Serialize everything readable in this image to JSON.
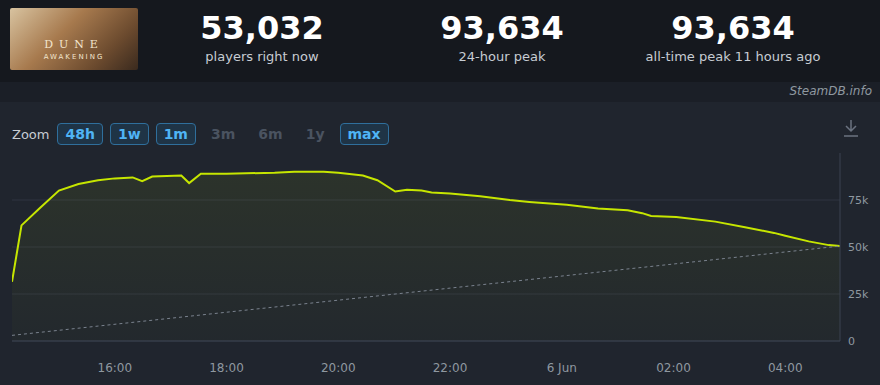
{
  "thumbnail": {
    "title": "DUNE",
    "subtitle": "AWAKENING"
  },
  "stats": [
    {
      "value": 53032,
      "label": "53,032",
      "caption": "players right now"
    },
    {
      "value": 93634,
      "label": "93,634",
      "caption": "24-hour peak"
    },
    {
      "value": 93634,
      "label": "93,634",
      "caption": "all-time peak 11 hours ago"
    }
  ],
  "watermark": "SteamDB.info",
  "zoom": {
    "label": "Zoom",
    "buttons": [
      {
        "label": "48h",
        "enabled": true
      },
      {
        "label": "1w",
        "enabled": true
      },
      {
        "label": "1m",
        "enabled": true
      },
      {
        "label": "3m",
        "enabled": false
      },
      {
        "label": "6m",
        "enabled": false
      },
      {
        "label": "1y",
        "enabled": false
      },
      {
        "label": "max",
        "enabled": true
      }
    ]
  },
  "chart_data": {
    "type": "area",
    "grid": true,
    "xlim": [
      14.16,
      28.98
    ],
    "xticks": [
      {
        "value": 16,
        "label": "16:00"
      },
      {
        "value": 18,
        "label": "18:00"
      },
      {
        "value": 20,
        "label": "20:00"
      },
      {
        "value": 22,
        "label": "22:00"
      },
      {
        "value": 24,
        "label": "6 Jun"
      },
      {
        "value": 26,
        "label": "02:00"
      },
      {
        "value": 28,
        "label": "04:00"
      }
    ],
    "ylim": [
      0,
      100000
    ],
    "yticks": [
      {
        "value": 0,
        "label": "0"
      },
      {
        "value": 25000,
        "label": "25k"
      },
      {
        "value": 50000,
        "label": "50k"
      },
      {
        "value": 75000,
        "label": "75k"
      }
    ],
    "series": [
      {
        "type": "area",
        "color": "#c6e600",
        "x": [
          14.16,
          14.33,
          14.65,
          15.0,
          15.35,
          15.7,
          16.0,
          16.32,
          16.49,
          16.67,
          17.19,
          17.33,
          17.54,
          18.0,
          18.86,
          19.21,
          19.74,
          20.0,
          20.44,
          20.7,
          21.02,
          21.23,
          21.49,
          21.67,
          22.0,
          22.54,
          23.07,
          23.42,
          24.09,
          24.65,
          25.18,
          25.44,
          25.6,
          26.05,
          26.75,
          27.28,
          27.8,
          28.0,
          28.42,
          28.78,
          28.98
        ],
        "values": [
          31500,
          61500,
          70500,
          80000,
          83500,
          85500,
          86500,
          87000,
          85000,
          87500,
          88000,
          84000,
          89000,
          89000,
          89500,
          90000,
          90000,
          89500,
          88000,
          85500,
          79500,
          80500,
          80000,
          79000,
          78500,
          77000,
          75000,
          74000,
          72500,
          70500,
          69500,
          68000,
          66500,
          66000,
          63500,
          60500,
          57500,
          56000,
          53000,
          51000,
          50500
        ]
      },
      {
        "type": "line",
        "color": "#7a828e",
        "line_style": "dashed",
        "x": [
          14.16,
          28.98
        ],
        "values": [
          3000,
          50500
        ]
      }
    ]
  }
}
